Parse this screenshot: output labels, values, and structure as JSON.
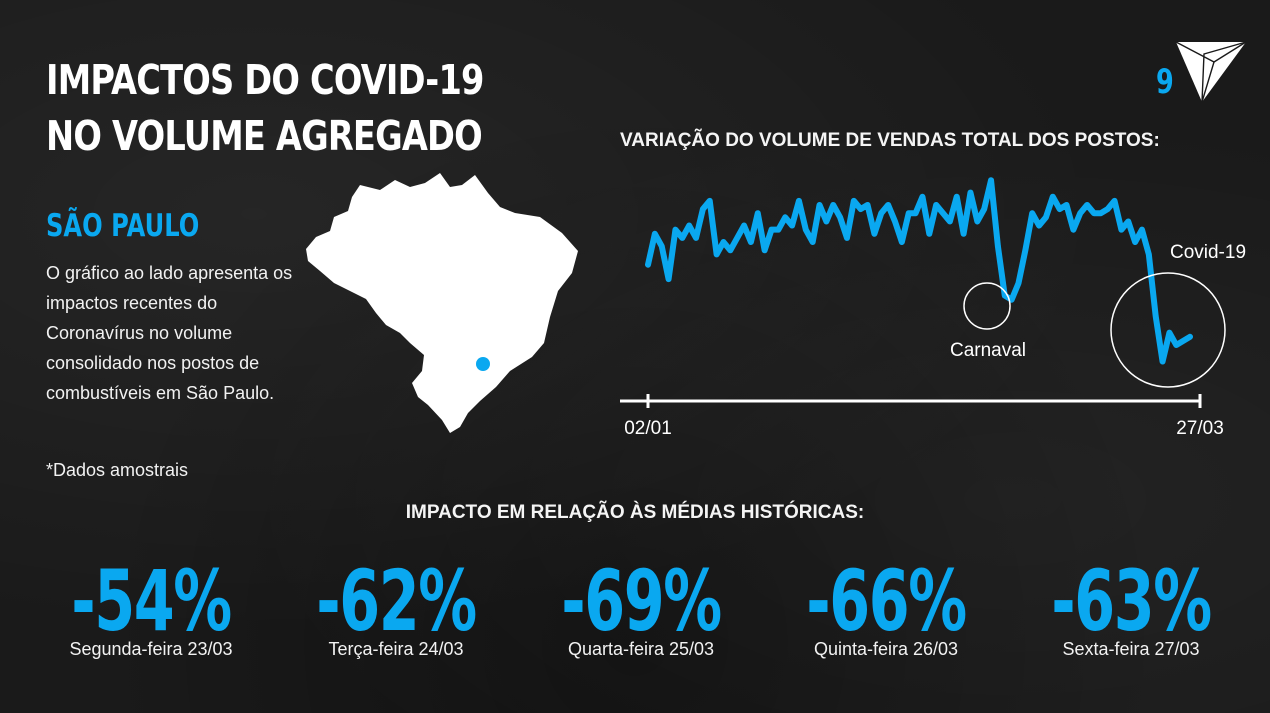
{
  "slide": {
    "title": "IMPACTOS DO COVID-19 NO VOLUME AGREGADO",
    "page_number": "9",
    "accent_color": "#0aa8f0"
  },
  "left_panel": {
    "section_title": "SÃO PAULO",
    "description": "O gráfico ao lado apresenta os impactos recentes do Coronavírus no volume consolidado nos postos de combustíveis em São Paulo.",
    "footnote": "*Dados amostrais",
    "map_icon": "brazil-map-with-sao-paulo-marker"
  },
  "chart_data": {
    "type": "line",
    "title": "VARIAÇÃO DO VOLUME DE VENDAS TOTAL DOS POSTOS:",
    "x_start_label": "02/01",
    "x_end_label": "27/03",
    "values": [
      55,
      70,
      64,
      48,
      72,
      68,
      74,
      68,
      82,
      86,
      60,
      66,
      62,
      68,
      74,
      66,
      80,
      62,
      72,
      72,
      78,
      74,
      86,
      72,
      66,
      84,
      76,
      84,
      78,
      68,
      86,
      82,
      84,
      70,
      80,
      84,
      76,
      66,
      80,
      80,
      88,
      70,
      84,
      80,
      76,
      88,
      70,
      90,
      76,
      82,
      96,
      64,
      40,
      38,
      46,
      62,
      80,
      74,
      78,
      88,
      82,
      84,
      72,
      80,
      84,
      80,
      80,
      82,
      86,
      72,
      76,
      66,
      72,
      60,
      30,
      8,
      22,
      16,
      18,
      20
    ],
    "annotations": [
      "Carnaval",
      "Covid-19"
    ]
  },
  "impact": {
    "title": "IMPACTO EM RELAÇÃO ÀS MÉDIAS HISTÓRICAS:",
    "items": [
      {
        "value": "-54%",
        "label": "Segunda-feira 23/03"
      },
      {
        "value": "-62%",
        "label": "Terça-feira 24/03"
      },
      {
        "value": "-69%",
        "label": "Quarta-feira 25/03"
      },
      {
        "value": "-66%",
        "label": "Quinta-feira 26/03"
      },
      {
        "value": "-63%",
        "label": "Sexta-feira 27/03"
      }
    ]
  }
}
